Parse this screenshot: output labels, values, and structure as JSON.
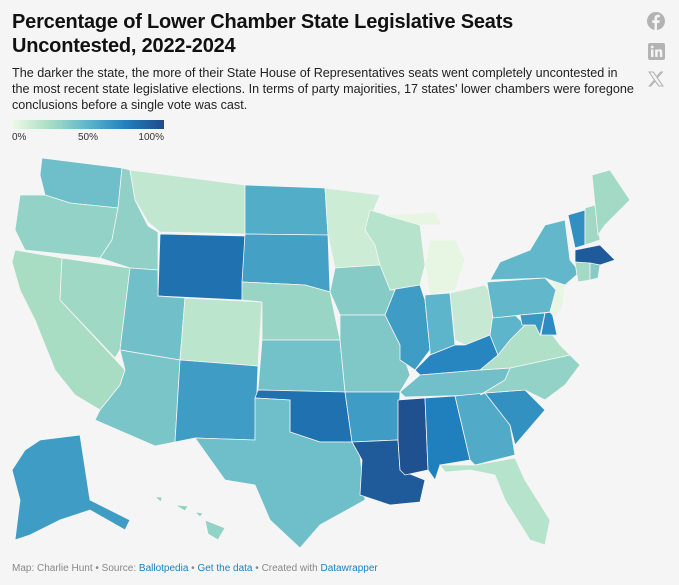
{
  "header": {
    "title": "Percentage of Lower Chamber State Legislative Seats Uncontested, 2022-2024",
    "description": "The darker the state, the more of their State House of Representatives seats went completely uncontested in the most recent state legislative elections. In terms of party majorities, 17 states' lower chambers were foregone conclusions before a single vote was cast."
  },
  "legend": {
    "min_label": "0%",
    "mid_label": "50%",
    "max_label": "100%",
    "colors": [
      "#eef9e6",
      "#a8ddc4",
      "#5cb5cb",
      "#2080bd",
      "#1f4a8a"
    ]
  },
  "social": [
    "facebook-icon",
    "linkedin-icon",
    "x-icon"
  ],
  "map_data": {
    "type": "choropleth",
    "unit": "percent uncontested",
    "range": [
      0,
      100
    ],
    "values": {
      "WA": 44,
      "OR": 32,
      "CA": 25,
      "NV": 28,
      "ID": 33,
      "MT": 16,
      "WY": 82,
      "UT": 43,
      "AZ": 40,
      "CO": 18,
      "NM": 62,
      "ND": 54,
      "SD": 60,
      "NE": 30,
      "KS": 42,
      "OK": 82,
      "TX": 44,
      "MN": 12,
      "IA": 36,
      "MO": 38,
      "AR": 62,
      "LA": 92,
      "WI": 20,
      "MI": 3,
      "IL": 62,
      "IN": 50,
      "OH": 14,
      "KY": 72,
      "TN": 43,
      "MS": 97,
      "AL": 75,
      "GA": 55,
      "FL": 20,
      "SC": 67,
      "NC": 32,
      "VA": 22,
      "WV": 50,
      "PA": 48,
      "MD": 64,
      "DE": 70,
      "NJ": 3,
      "NY": 48,
      "VT": 68,
      "NH": 28,
      "ME": 27,
      "MA": 92,
      "CT": 27,
      "RI": 36,
      "AK": 62,
      "HI": 32
    }
  },
  "footer": {
    "map_by": "Map: Charlie Hunt",
    "sep": " • ",
    "source_label": "Source: ",
    "source_link": "Ballotpedia",
    "get_data": "Get the data",
    "created_with": "Created with ",
    "datawrapper": "Datawrapper"
  }
}
